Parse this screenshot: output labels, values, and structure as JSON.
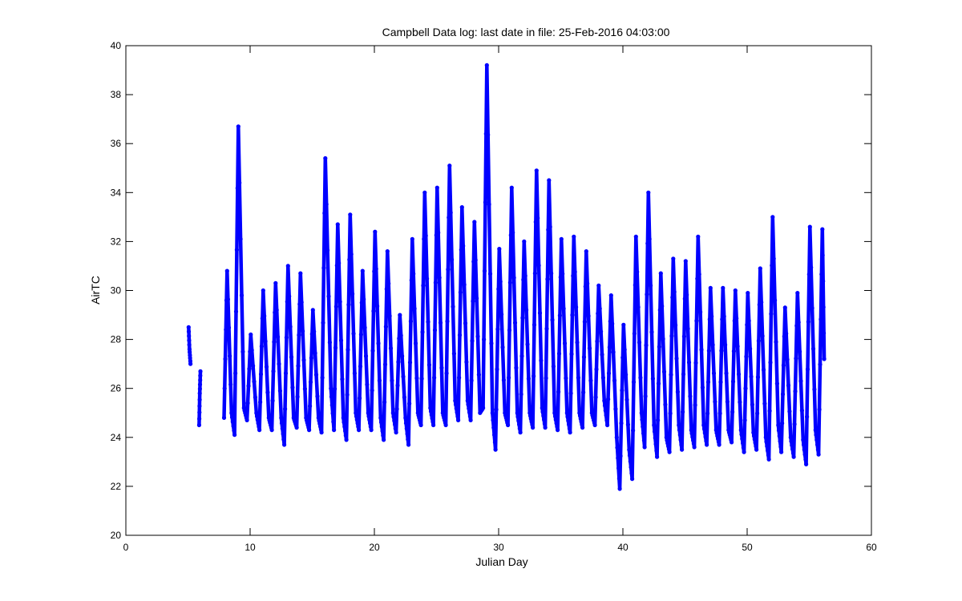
{
  "chart_data": {
    "type": "line",
    "title": "Campbell Data log: last date in file: 25-Feb-2016 04:03:00",
    "xlabel": "Julian Day",
    "ylabel": "AirTC",
    "xlim": [
      0,
      60
    ],
    "ylim": [
      20,
      40
    ],
    "xticks": [
      0,
      10,
      20,
      30,
      40,
      50,
      60
    ],
    "yticks": [
      20,
      22,
      24,
      26,
      28,
      30,
      32,
      34,
      36,
      38,
      40
    ],
    "grid": false,
    "legend": "none",
    "series_color": "#0000ff",
    "marker": "dot",
    "segments": [
      {
        "x": [
          5.05,
          5.12,
          5.2
        ],
        "y": [
          28.5,
          27.6,
          27.0
        ]
      },
      {
        "x": [
          5.9,
          5.95,
          6.0
        ],
        "y": [
          24.5,
          25.8,
          26.7
        ]
      },
      {
        "x": [
          7.9,
          8.15,
          8.5,
          8.75,
          9.05,
          9.5,
          9.75,
          10.05,
          10.5,
          10.75,
          11.05,
          11.5,
          11.75,
          12.05,
          12.5,
          12.75,
          13.05,
          13.5,
          13.75,
          14.05,
          14.5,
          14.75,
          15.05,
          15.5,
          15.75,
          16.05,
          16.5,
          16.75,
          17.05,
          17.5,
          17.75,
          18.05,
          18.5,
          18.75,
          19.05,
          19.5,
          19.75,
          20.05,
          20.5,
          20.75,
          21.05,
          21.5,
          21.75,
          22.05,
          22.5,
          22.75,
          23.05,
          23.5,
          23.75,
          24.05,
          24.5,
          24.75,
          25.05,
          25.5,
          25.75,
          26.05,
          26.5,
          26.75,
          27.05,
          27.5,
          27.75,
          28.05,
          28.5,
          28.75,
          29.05,
          29.5,
          29.75,
          30.05,
          30.5,
          30.75,
          31.05,
          31.5,
          31.75,
          32.05,
          32.5,
          32.75,
          33.05,
          33.5,
          33.75,
          34.05,
          34.5,
          34.75,
          35.05,
          35.5,
          35.75,
          36.05,
          36.5,
          36.75,
          37.05,
          37.5,
          37.75,
          38.05,
          38.5,
          38.75,
          39.05,
          39.5,
          39.75,
          40.05,
          40.5,
          40.75,
          41.05,
          41.5,
          41.75,
          42.05,
          42.5,
          42.75,
          43.05,
          43.5,
          43.75,
          44.05,
          44.5,
          44.75,
          45.05,
          45.5,
          45.75,
          46.05,
          46.5,
          46.75,
          47.05,
          47.5,
          47.75,
          48.05,
          48.5,
          48.75,
          49.05,
          49.5,
          49.75,
          50.05,
          50.5,
          50.75,
          51.05,
          51.5,
          51.75,
          52.05,
          52.5,
          52.75,
          53.05,
          53.5,
          53.75,
          54.05,
          54.5,
          54.75,
          55.05,
          55.5,
          55.75,
          56.05,
          56.2
        ],
        "y": [
          24.8,
          30.8,
          25.0,
          24.1,
          36.7,
          25.2,
          24.7,
          28.2,
          25.0,
          24.3,
          30.0,
          24.8,
          24.3,
          30.3,
          24.8,
          23.7,
          31.0,
          24.8,
          24.4,
          30.7,
          24.8,
          24.3,
          29.2,
          24.8,
          24.2,
          35.4,
          26.0,
          24.3,
          32.7,
          24.8,
          23.9,
          33.1,
          25.0,
          24.3,
          30.8,
          25.0,
          24.3,
          32.4,
          24.8,
          23.9,
          31.6,
          25.0,
          24.2,
          29.0,
          24.8,
          23.7,
          32.1,
          25.0,
          24.5,
          34.0,
          25.2,
          24.5,
          34.2,
          25.0,
          24.5,
          35.1,
          25.5,
          24.7,
          33.4,
          25.5,
          24.7,
          32.8,
          25.0,
          25.2,
          39.2,
          25.0,
          23.5,
          31.7,
          25.0,
          24.5,
          34.2,
          25.0,
          24.2,
          32.0,
          25.0,
          24.4,
          34.9,
          25.2,
          24.4,
          34.5,
          25.0,
          24.3,
          32.1,
          25.0,
          24.2,
          32.2,
          25.0,
          24.4,
          31.6,
          25.0,
          24.5,
          30.2,
          25.5,
          24.5,
          29.8,
          24.0,
          21.9,
          28.6,
          23.5,
          22.3,
          32.2,
          25.0,
          23.6,
          34.0,
          24.5,
          23.2,
          30.7,
          24.0,
          23.4,
          31.3,
          24.5,
          23.5,
          31.2,
          24.3,
          23.6,
          32.2,
          24.5,
          23.7,
          30.1,
          24.3,
          23.7,
          30.1,
          24.3,
          23.8,
          30.0,
          24.3,
          23.4,
          29.9,
          24.2,
          23.5,
          30.9,
          24.0,
          23.1,
          33.0,
          24.5,
          23.4,
          29.3,
          24.0,
          23.2,
          29.9,
          23.9,
          22.9,
          32.6,
          24.3,
          23.3,
          32.5,
          27.2
        ]
      }
    ]
  }
}
